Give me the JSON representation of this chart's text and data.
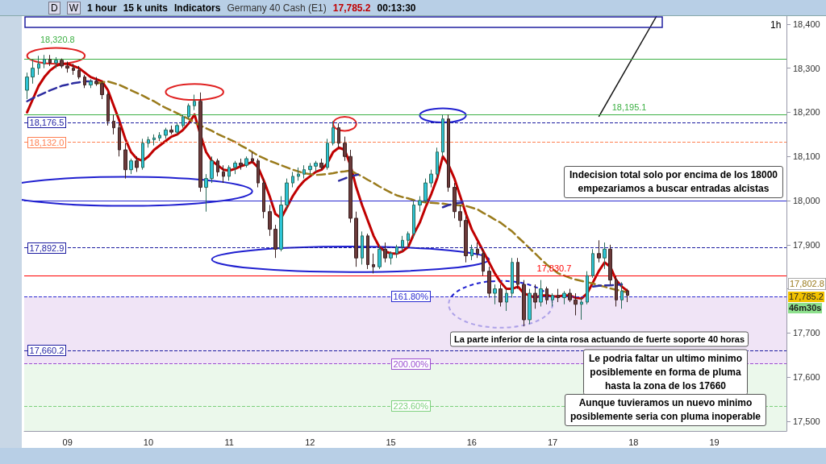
{
  "chart_data": {
    "type": "candlestick",
    "title": "Germany 40 Cash (E1)",
    "categories": [
      null,
      null,
      null,
      null,
      null,
      null,
      null,
      "09",
      null,
      null,
      null,
      null,
      null,
      null,
      null,
      null,
      null,
      null,
      null,
      null,
      null,
      "10",
      null,
      null,
      null,
      null,
      null,
      null,
      null,
      null,
      null,
      null,
      null,
      null,
      null,
      "11",
      null,
      null,
      null,
      null,
      null,
      null,
      null,
      null,
      null,
      null,
      null,
      null,
      null,
      "12",
      null,
      null,
      null,
      null,
      null,
      null,
      null,
      null,
      null,
      null,
      null,
      null,
      null,
      "15",
      null,
      null,
      null,
      null,
      null,
      null,
      null,
      null,
      null,
      null,
      null,
      null,
      null,
      "16",
      null,
      null,
      null,
      null,
      null,
      null,
      null,
      null,
      null,
      null,
      null,
      null,
      null,
      "17",
      null,
      null,
      null,
      null,
      null,
      null,
      null,
      null,
      null,
      null,
      null,
      null,
      null,
      "18",
      null,
      null,
      null,
      null,
      null,
      null,
      null,
      null,
      null,
      null,
      null,
      null,
      null,
      "19",
      null,
      null,
      null,
      null,
      null,
      null,
      null,
      null,
      null,
      null,
      null,
      null
    ],
    "ohlc": [
      [
        18250,
        18290,
        18230,
        18280
      ],
      [
        18280,
        18320,
        18265,
        18300
      ],
      [
        18300,
        18328,
        18285,
        18310
      ],
      [
        18310,
        18330,
        18300,
        18320
      ],
      [
        18320,
        18330,
        18305,
        18312
      ],
      [
        18312,
        18325,
        18300,
        18318
      ],
      [
        18318,
        18322,
        18300,
        18305
      ],
      [
        18305,
        18315,
        18290,
        18300
      ],
      [
        18300,
        18310,
        18285,
        18295
      ],
      [
        18295,
        18305,
        18275,
        18280
      ],
      [
        18280,
        18285,
        18255,
        18262
      ],
      [
        18262,
        18275,
        18255,
        18270
      ],
      [
        18270,
        18280,
        18260,
        18265
      ],
      [
        18265,
        18270,
        18230,
        18240
      ],
      [
        18240,
        18245,
        18170,
        18180
      ],
      [
        18180,
        18195,
        18150,
        18165
      ],
      [
        18165,
        18175,
        18100,
        18115
      ],
      [
        18115,
        18130,
        18050,
        18070
      ],
      [
        18070,
        18095,
        18060,
        18090
      ],
      [
        18090,
        18100,
        18065,
        18075
      ],
      [
        18075,
        18140,
        18070,
        18130
      ],
      [
        18130,
        18145,
        18120,
        18138
      ],
      [
        18138,
        18150,
        18125,
        18142
      ],
      [
        18142,
        18155,
        18135,
        18148
      ],
      [
        18148,
        18165,
        18140,
        18160
      ],
      [
        18160,
        18170,
        18150,
        18155
      ],
      [
        18155,
        18175,
        18150,
        18170
      ],
      [
        18170,
        18195,
        18165,
        18190
      ],
      [
        18190,
        18220,
        18185,
        18215
      ],
      [
        18215,
        18240,
        18205,
        18225
      ],
      [
        18225,
        18245,
        18020,
        18030
      ],
      [
        18030,
        18060,
        17975,
        18050
      ],
      [
        18050,
        18100,
        18040,
        18090
      ],
      [
        18090,
        18095,
        18055,
        18065
      ],
      [
        18065,
        18080,
        18040,
        18055
      ],
      [
        18055,
        18080,
        18045,
        18075
      ],
      [
        18075,
        18090,
        18060,
        18085
      ],
      [
        18085,
        18095,
        18070,
        18080
      ],
      [
        18080,
        18100,
        18075,
        18095
      ],
      [
        18095,
        18110,
        18085,
        18090
      ],
      [
        18090,
        18095,
        18030,
        18040
      ],
      [
        18040,
        18050,
        17960,
        17975
      ],
      [
        17975,
        17990,
        17920,
        17935
      ],
      [
        17935,
        17945,
        17870,
        17890
      ],
      [
        17890,
        18010,
        17885,
        17990
      ],
      [
        17990,
        18050,
        17980,
        18040
      ],
      [
        18040,
        18065,
        18030,
        18055
      ],
      [
        18055,
        18075,
        18045,
        18060
      ],
      [
        18060,
        18080,
        18050,
        18070
      ],
      [
        18070,
        18085,
        18060,
        18078
      ],
      [
        18078,
        18090,
        18065,
        18085
      ],
      [
        18085,
        18095,
        18070,
        18075
      ],
      [
        18075,
        18140,
        18070,
        18130
      ],
      [
        18130,
        18180,
        18125,
        18165
      ],
      [
        18165,
        18175,
        18120,
        18130
      ],
      [
        18130,
        18145,
        18090,
        18100
      ],
      [
        18100,
        18115,
        17950,
        17960
      ],
      [
        17960,
        17975,
        17850,
        17870
      ],
      [
        17870,
        17930,
        17855,
        17920
      ],
      [
        17920,
        17925,
        17845,
        17855
      ],
      [
        17855,
        17880,
        17835,
        17850
      ],
      [
        17850,
        17900,
        17845,
        17890
      ],
      [
        17890,
        17905,
        17860,
        17870
      ],
      [
        17870,
        17885,
        17855,
        17880
      ],
      [
        17880,
        17900,
        17870,
        17895
      ],
      [
        17895,
        17920,
        17885,
        17910
      ],
      [
        17910,
        17930,
        17895,
        17925
      ],
      [
        17925,
        18000,
        17915,
        17990
      ],
      [
        17990,
        18010,
        17975,
        18000
      ],
      [
        18000,
        18050,
        17995,
        18040
      ],
      [
        18040,
        18070,
        18030,
        18060
      ],
      [
        18060,
        18120,
        18050,
        18110
      ],
      [
        18110,
        18195,
        18100,
        18185
      ],
      [
        18185,
        18195,
        18020,
        18030
      ],
      [
        18030,
        18040,
        17960,
        17975
      ],
      [
        17975,
        17990,
        17940,
        17955
      ],
      [
        17955,
        17965,
        17860,
        17875
      ],
      [
        17875,
        17900,
        17865,
        17890
      ],
      [
        17890,
        17905,
        17870,
        17880
      ],
      [
        17880,
        17890,
        17830,
        17840
      ],
      [
        17840,
        17850,
        17780,
        17790
      ],
      [
        17790,
        17810,
        17765,
        17800
      ],
      [
        17800,
        17810,
        17760,
        17770
      ],
      [
        17770,
        17800,
        17750,
        17790
      ],
      [
        17790,
        17870,
        17780,
        17860
      ],
      [
        17860,
        17870,
        17800,
        17810
      ],
      [
        17810,
        17820,
        17715,
        17730
      ],
      [
        17730,
        17800,
        17720,
        17790
      ],
      [
        17790,
        17810,
        17755,
        17770
      ],
      [
        17770,
        17820,
        17760,
        17800
      ],
      [
        17800,
        17805,
        17765,
        17775
      ],
      [
        17775,
        17790,
        17760,
        17785
      ],
      [
        17785,
        17800,
        17770,
        17780
      ],
      [
        17780,
        17795,
        17765,
        17790
      ],
      [
        17790,
        17800,
        17770,
        17775
      ],
      [
        17775,
        17790,
        17740,
        17765
      ],
      [
        17765,
        17780,
        17730,
        17770
      ],
      [
        17770,
        17840,
        17765,
        17830
      ],
      [
        17830,
        17890,
        17825,
        17880
      ],
      [
        17880,
        17910,
        17860,
        17870
      ],
      [
        17870,
        17905,
        17845,
        17890
      ],
      [
        17890,
        17900,
        17810,
        17820
      ],
      [
        17820,
        17830,
        17760,
        17775
      ],
      [
        17775,
        17815,
        17755,
        17795
      ],
      [
        17795,
        17800,
        17770,
        17785.2
      ],
      null,
      null,
      null,
      null,
      null,
      null,
      null,
      null,
      null,
      null,
      null,
      null,
      null,
      null,
      null,
      null,
      null,
      null,
      null,
      null,
      null,
      null,
      null,
      null,
      null,
      null,
      null
    ],
    "series": [
      {
        "type": "line",
        "color": "#c00000",
        "line_style": "solid",
        "values": [
          18200,
          18230,
          18260,
          18280,
          18295,
          18305,
          18310,
          18310,
          18305,
          18300,
          18290,
          18280,
          18275,
          18270,
          18250,
          18215,
          18180,
          18140,
          18110,
          18095,
          18090,
          18100,
          18115,
          18125,
          18135,
          18145,
          18150,
          18160,
          18175,
          18195,
          18150,
          18110,
          18090,
          18080,
          18070,
          18068,
          18072,
          18078,
          18082,
          18088,
          18075,
          18045,
          18010,
          17970,
          17960,
          17985,
          18010,
          18030,
          18045,
          18055,
          18065,
          18070,
          18085,
          18110,
          18120,
          18115,
          18080,
          18030,
          17990,
          17955,
          17920,
          17895,
          17885,
          17880,
          17880,
          17885,
          17895,
          17925,
          17950,
          17985,
          18015,
          18050,
          18100,
          18080,
          18050,
          18010,
          17970,
          17935,
          17910,
          17885,
          17860,
          17835,
          17815,
          17800,
          17800,
          17805,
          17790,
          17785,
          17780,
          17785,
          17785,
          17783,
          17783,
          17785,
          17785,
          17780,
          17778,
          17790,
          17815,
          17840,
          17860,
          17850,
          17820,
          17805,
          17795,
          null,
          null,
          null,
          null,
          null,
          null,
          null,
          null,
          null,
          null,
          null,
          null,
          null,
          null,
          null,
          null,
          null,
          null,
          null,
          null,
          null,
          null,
          null,
          null,
          null,
          null,
          null
        ]
      },
      {
        "type": "line",
        "color": "#9a7b1c",
        "line_style": "dashed",
        "values": [
          null,
          null,
          null,
          null,
          null,
          null,
          null,
          null,
          null,
          null,
          null,
          null,
          18265,
          18268,
          18270,
          18266,
          18262,
          18256,
          18250,
          18244,
          18238,
          18231,
          18225,
          18217,
          18210,
          18204,
          18198,
          18191,
          18185,
          18177,
          18170,
          18164,
          18158,
          18151,
          18145,
          18139,
          18133,
          18125,
          18118,
          18110,
          18102,
          18096,
          18090,
          18085,
          18080,
          18075,
          18070,
          18066,
          18062,
          18060,
          18058,
          18059,
          18060,
          18062,
          18065,
          18066,
          18068,
          18061,
          18055,
          18047,
          18040,
          18032,
          18025,
          18018,
          18012,
          18008,
          18005,
          18001,
          17998,
          17996,
          17995,
          17994,
          17993,
          17991,
          17990,
          17989,
          17988,
          17984,
          17980,
          17972,
          17965,
          17957,
          17950,
          17940,
          17930,
          17917,
          17905,
          17892,
          17880,
          17867,
          17855,
          17845,
          17835,
          17830,
          17825,
          17821,
          17818,
          17815,
          17812,
          17808,
          17805,
          17801,
          17798,
          17795,
          17792,
          null,
          null,
          null,
          null,
          null,
          null,
          null,
          null,
          null,
          null,
          null,
          null,
          null,
          null,
          null,
          null,
          null,
          null,
          null,
          null,
          null,
          null,
          null,
          null,
          null,
          null,
          null
        ]
      },
      {
        "type": "line",
        "color": "#2c2ca0",
        "line_style": "dashed",
        "values": [
          18225,
          18232,
          18238,
          18244,
          18250,
          18255,
          18260,
          18263,
          18266,
          18268,
          18270,
          18270,
          18270,
          null,
          null,
          null,
          null,
          null,
          null,
          null,
          null,
          null,
          null,
          null,
          null,
          null,
          null,
          null,
          null,
          null,
          null,
          null,
          null,
          null,
          null,
          null,
          null,
          null,
          null,
          null,
          null,
          null,
          null,
          null,
          null,
          null,
          null,
          null,
          null,
          null,
          null,
          null,
          null,
          null,
          18045,
          18050,
          18055,
          18058,
          18060,
          null,
          null,
          null,
          null,
          null,
          null,
          null,
          null,
          null,
          null,
          null,
          null,
          null,
          17985,
          17990,
          17993,
          17995,
          17996,
          null,
          null,
          null,
          null,
          null,
          null,
          null,
          null,
          null,
          null,
          null,
          null,
          null,
          null,
          null,
          null,
          null,
          null,
          null,
          null,
          null,
          17805,
          17807,
          17808,
          17808,
          17809,
          17810,
          null,
          null,
          null,
          null,
          null,
          null,
          null,
          null,
          null,
          null,
          null,
          null,
          null,
          null,
          null,
          null,
          null,
          null,
          null,
          null,
          null,
          null,
          null,
          null,
          null,
          null,
          null,
          null
        ]
      }
    ],
    "ylim": [
      17478,
      18418
    ],
    "yticks": [
      {
        "value": 17500,
        "label": "17,500"
      },
      {
        "value": 17600,
        "label": "17,600"
      },
      {
        "value": 17700,
        "label": "17,700"
      },
      {
        "value": 17800,
        "label": null
      },
      {
        "value": 17900,
        "label": "17,900"
      },
      {
        "value": 18000,
        "label": "18,000"
      },
      {
        "value": 18100,
        "label": "18,100"
      },
      {
        "value": 18200,
        "label": "18,200"
      },
      {
        "value": 18300,
        "label": "18,300"
      },
      {
        "value": 18400,
        "label": "18,400"
      }
    ],
    "ref_lines": [
      {
        "axis": "y",
        "value": 18320.8,
        "label": "18,320.8",
        "color": "#3cb043",
        "line_style": "solid"
      },
      {
        "axis": "y",
        "value": 18195.1,
        "label": "18,195.1",
        "color": "#3cb043",
        "line_style": "solid"
      },
      {
        "axis": "y",
        "value": 18176.5,
        "label": "18,176.5",
        "color": "#1c1ca0",
        "line_style": "dashed"
      },
      {
        "axis": "y",
        "value": 18132.0,
        "label": "18,132.0",
        "color": "#ff7f50",
        "line_style": "dashed"
      },
      {
        "axis": "y",
        "value": 18000,
        "color": "#2a2ad0",
        "line_style": "solid"
      },
      {
        "axis": "y",
        "value": 17892.9,
        "label": "17,892.9",
        "color": "#1c1ca0",
        "line_style": "dashed"
      },
      {
        "axis": "y",
        "value": 17830.7,
        "label": "17,830.7",
        "color": "#ff0000",
        "line_style": "solid"
      },
      {
        "axis": "y",
        "value": 17783,
        "color": "#2a2ad0",
        "line_style": "dashed"
      },
      {
        "axis": "y",
        "value": 17660.2,
        "label": "17,660.2",
        "color": "#1c1ca0",
        "line_style": "dashed"
      },
      {
        "axis": "y",
        "value": 17630,
        "color": "#9b4fd0",
        "line_style": "dashed"
      },
      {
        "axis": "y",
        "value": 17535,
        "color": "#7cd07c",
        "line_style": "dashed"
      }
    ],
    "bands": [
      {
        "axis": "y",
        "from": 17630,
        "to": 17783,
        "color": "#ead8f2"
      },
      {
        "axis": "y",
        "from": 17478,
        "to": 17630,
        "color": "#e2f5e2"
      }
    ],
    "annotations": [
      "D",
      "W",
      "1 hour",
      "15 k units",
      "Indicators",
      "17,785.2",
      "00:13:30",
      "1h",
      "Indecision total solo por encima de los 18000\nempezariamos a buscar entradas alcistas",
      "La parte inferior de la cinta rosa actuando de fuerte soporte 40 horas",
      "Le podria faltar un ultimo minimo\nposiblemente en forma de pluma\nhasta la zona de los 17660",
      "Aunque tuvieramos un nuevo minimo\nposiblemente seria con pluma inoperable",
      "17,802.8",
      "17,785.2",
      "46m30s",
      {
        "text": "161.80%",
        "y": 17783
      },
      {
        "text": "200.00%",
        "y": 17630
      },
      {
        "text": "223.60%",
        "y": 17535
      }
    ]
  }
}
